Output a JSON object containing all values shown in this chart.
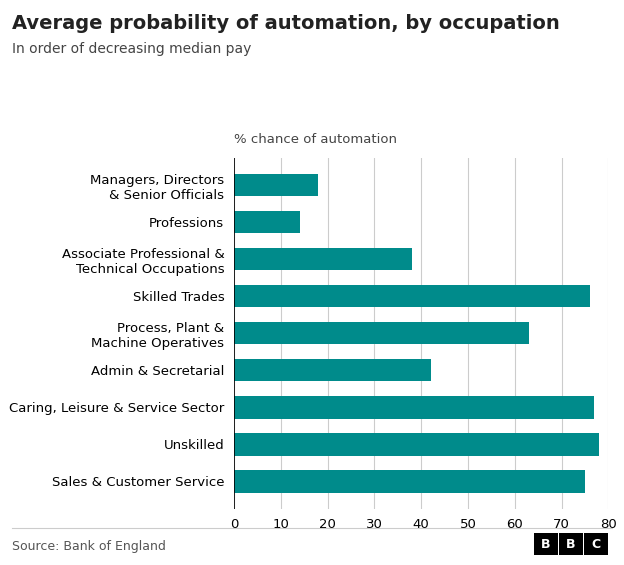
{
  "title": "Average probability of automation, by occupation",
  "subtitle": "In order of decreasing median pay",
  "xlabel_annotation": "% chance of automation",
  "source": "Source: Bank of England",
  "bar_color": "#008B8B",
  "categories": [
    "Sales & Customer Service",
    "Unskilled",
    "Caring, Leisure & Service Sector",
    "Admin & Secretarial",
    "Process, Plant &\nMachine Operatives",
    "Skilled Trades",
    "Associate Professional &\nTechnical Occupations",
    "Professions",
    "Managers, Directors\n& Senior Officials"
  ],
  "values": [
    75,
    78,
    77,
    42,
    63,
    76,
    38,
    14,
    18
  ],
  "xlim": [
    0,
    80
  ],
  "xticks": [
    0,
    10,
    20,
    30,
    40,
    50,
    60,
    70,
    80
  ],
  "background_color": "#ffffff",
  "grid_color": "#cccccc",
  "title_fontsize": 14,
  "subtitle_fontsize": 10,
  "tick_fontsize": 9.5,
  "annotation_fontsize": 9.5,
  "source_fontsize": 9
}
